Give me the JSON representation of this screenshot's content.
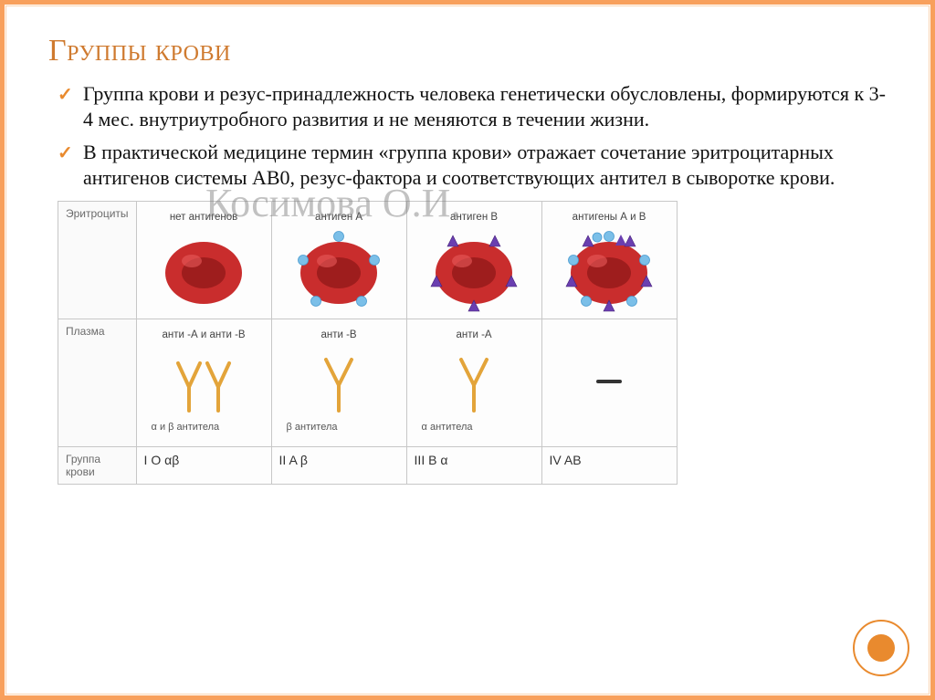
{
  "title": "Группы крови",
  "bullets": [
    "Группа крови и резус-принадлежность человека генетически обусловлены, формируются к 3-4 мес. внутриутробного развития и не меняются в течении жизни.",
    "В практической медицине термин «группа крови» отражает сочетание эритроцитарных антигенов системы АВ0, резус-фактора и соответствующих антител в сыворотке крови."
  ],
  "watermark": "Косимова О.И.",
  "accent_color": "#e98a2e",
  "border_color": "#f8a05c",
  "table": {
    "row_headers": [
      "Эритроциты",
      "Плазма",
      "Группа крови"
    ],
    "columns": [
      {
        "ery_label": "нет антигенов",
        "ery_antigens": {
          "A": false,
          "B": false
        },
        "plasma_label": "анти -А и анти -В",
        "antibody_label": "α и β антитела",
        "antibody_branches": "ab",
        "group_label": "I O αβ"
      },
      {
        "ery_label": "антиген А",
        "ery_antigens": {
          "A": true,
          "B": false
        },
        "plasma_label": "анти -В",
        "antibody_label": "β антитела",
        "antibody_branches": "single",
        "group_label": "II A β"
      },
      {
        "ery_label": "антиген В",
        "ery_antigens": {
          "A": false,
          "B": true
        },
        "plasma_label": "анти -А",
        "antibody_label": "α антитела",
        "antibody_branches": "single",
        "group_label": "III B α"
      },
      {
        "ery_label": "антигены А и В",
        "ery_antigens": {
          "A": true,
          "B": true
        },
        "plasma_label": "",
        "antibody_label": "",
        "antibody_branches": "none",
        "group_label": "IV AB"
      }
    ],
    "colors": {
      "rbc_fill": "#c92d2d",
      "rbc_center": "#9e1d1d",
      "rbc_highlight": "#e85a5a",
      "antigen_A": "#7bbfe8",
      "antigen_B": "#6a3fb0",
      "antibody": "#e3a43a",
      "grid": "#c7c7c7",
      "cell_bg": "#fdfdfd",
      "none_dash": "#333333"
    }
  },
  "corner_circle": {
    "outer_stroke": "#e98a2e",
    "inner_fill": "#e98a2e",
    "outer_r": 30,
    "inner_r": 15
  }
}
